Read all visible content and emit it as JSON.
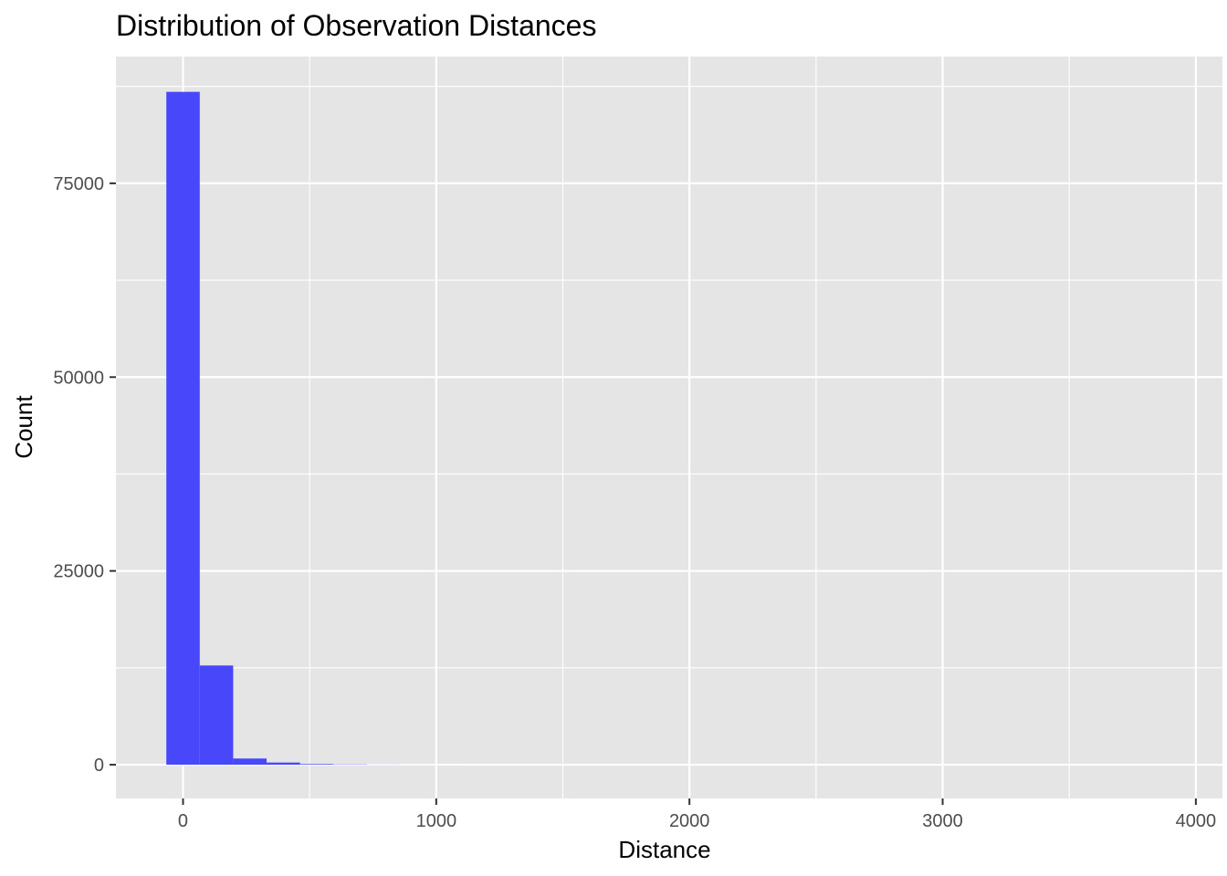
{
  "chart_data": {
    "type": "bar",
    "title": "Distribution of Observation Distances",
    "xlabel": "Distance",
    "ylabel": "Count",
    "xlim": [
      -265,
      4105
    ],
    "ylim": [
      -4350,
      91350
    ],
    "x_ticks": [
      0,
      1000,
      2000,
      3000,
      4000
    ],
    "x_tick_labels": [
      "0",
      "1000",
      "2000",
      "3000",
      "4000"
    ],
    "x_minor_ticks": [
      500,
      1500,
      2500,
      3500
    ],
    "y_ticks": [
      0,
      25000,
      50000,
      75000
    ],
    "y_tick_labels": [
      "0",
      "25000",
      "50000",
      "75000"
    ],
    "y_minor_ticks": [
      12500,
      37500,
      62500,
      87500
    ],
    "grid": true,
    "bin_width": 132,
    "bins": [
      {
        "xmin": -66,
        "xmax": 66,
        "count": 86800
      },
      {
        "xmin": 66,
        "xmax": 198,
        "count": 12800
      },
      {
        "xmin": 198,
        "xmax": 330,
        "count": 800
      },
      {
        "xmin": 330,
        "xmax": 462,
        "count": 280
      },
      {
        "xmin": 462,
        "xmax": 594,
        "count": 90
      },
      {
        "xmin": 594,
        "xmax": 726,
        "count": 40
      },
      {
        "xmin": 726,
        "xmax": 858,
        "count": 15
      },
      {
        "xmin": 858,
        "xmax": 990,
        "count": 8
      },
      {
        "xmin": 990,
        "xmax": 1122,
        "count": 4
      }
    ],
    "bar_color": "#4848FA",
    "panel_background": "#E5E5E5",
    "grid_color": "#FFFFFF"
  }
}
